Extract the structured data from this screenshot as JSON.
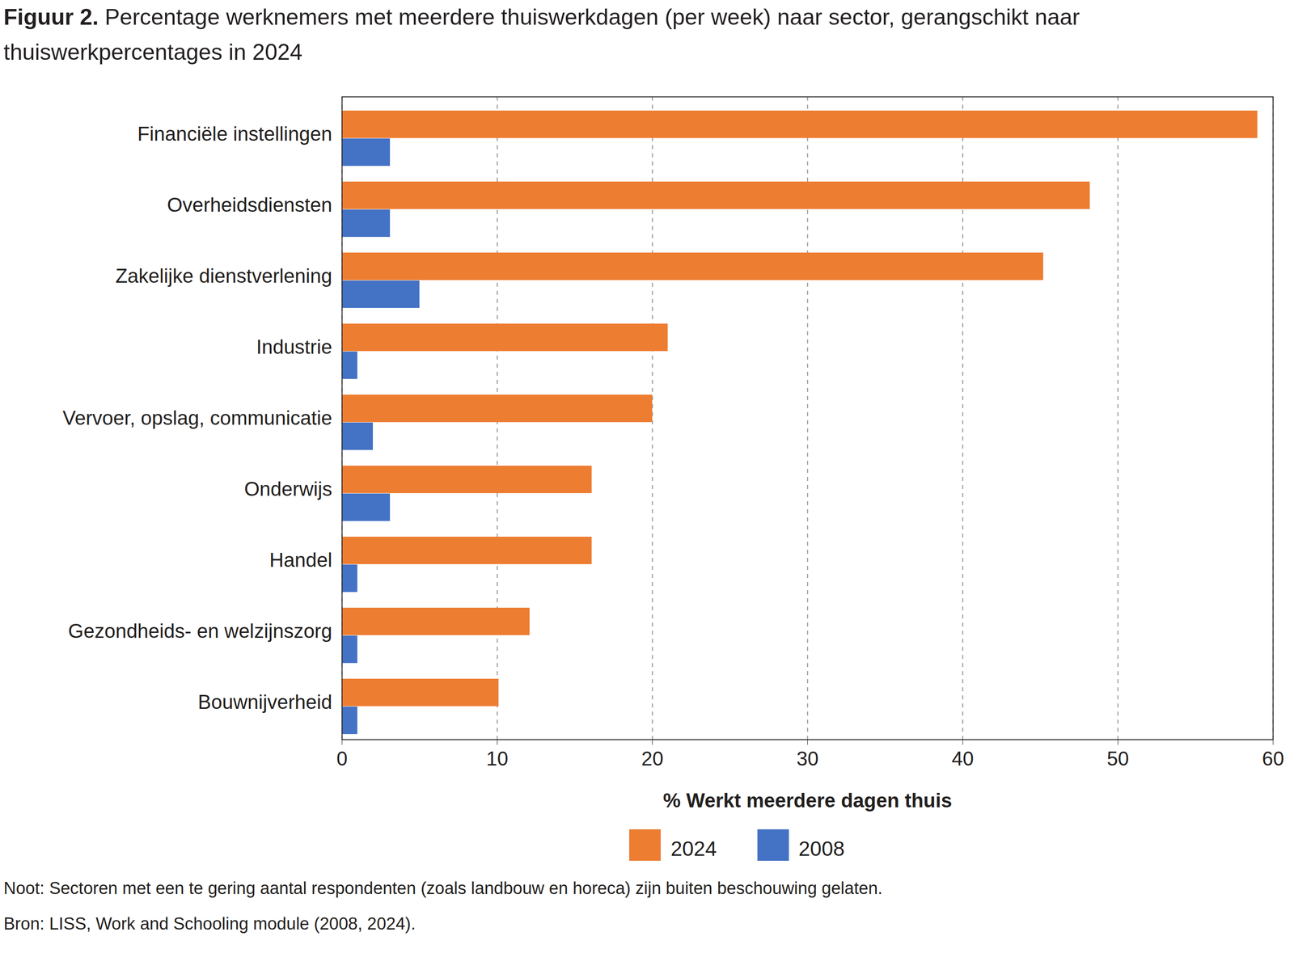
{
  "chart_data": {
    "type": "bar",
    "orientation": "horizontal",
    "title": "Figuur 2. Percentage werknemers met meerdere thuiswerkdagen (per week) naar sector, gerangschikt naar thuiswerkpercentages in 2024",
    "categories": [
      "Financiële instellingen",
      "Overheidsdiensten",
      "Zakelijke dienstverlening",
      "Industrie",
      "Vervoer, opslag, communicatie",
      "Onderwijs",
      "Handel",
      "Gezondheids- en welzijnszorg",
      "Bouwnijverheid"
    ],
    "series": [
      {
        "name": "2024",
        "color": "#ED7D31",
        "values": [
          59,
          48.2,
          45.2,
          21,
          20,
          16.1,
          16.1,
          12.1,
          10.1
        ]
      },
      {
        "name": "2008",
        "color": "#4472C4",
        "values": [
          3.1,
          3.1,
          5,
          1,
          2,
          3.1,
          1,
          1,
          1
        ]
      }
    ],
    "xlabel": "% Werkt meerdere dagen thuis",
    "xlim": [
      0,
      60
    ],
    "xticks": [
      0,
      10,
      20,
      30,
      40,
      50,
      60
    ],
    "grid": true,
    "legend": "bottom",
    "notes": [
      "Noot: Sectoren met een te gering aantal respondenten (zoals landbouw en horeca) zijn buiten beschouwing gelaten.",
      "Bron: LISS, Work and Schooling module (2008, 2024)."
    ]
  }
}
